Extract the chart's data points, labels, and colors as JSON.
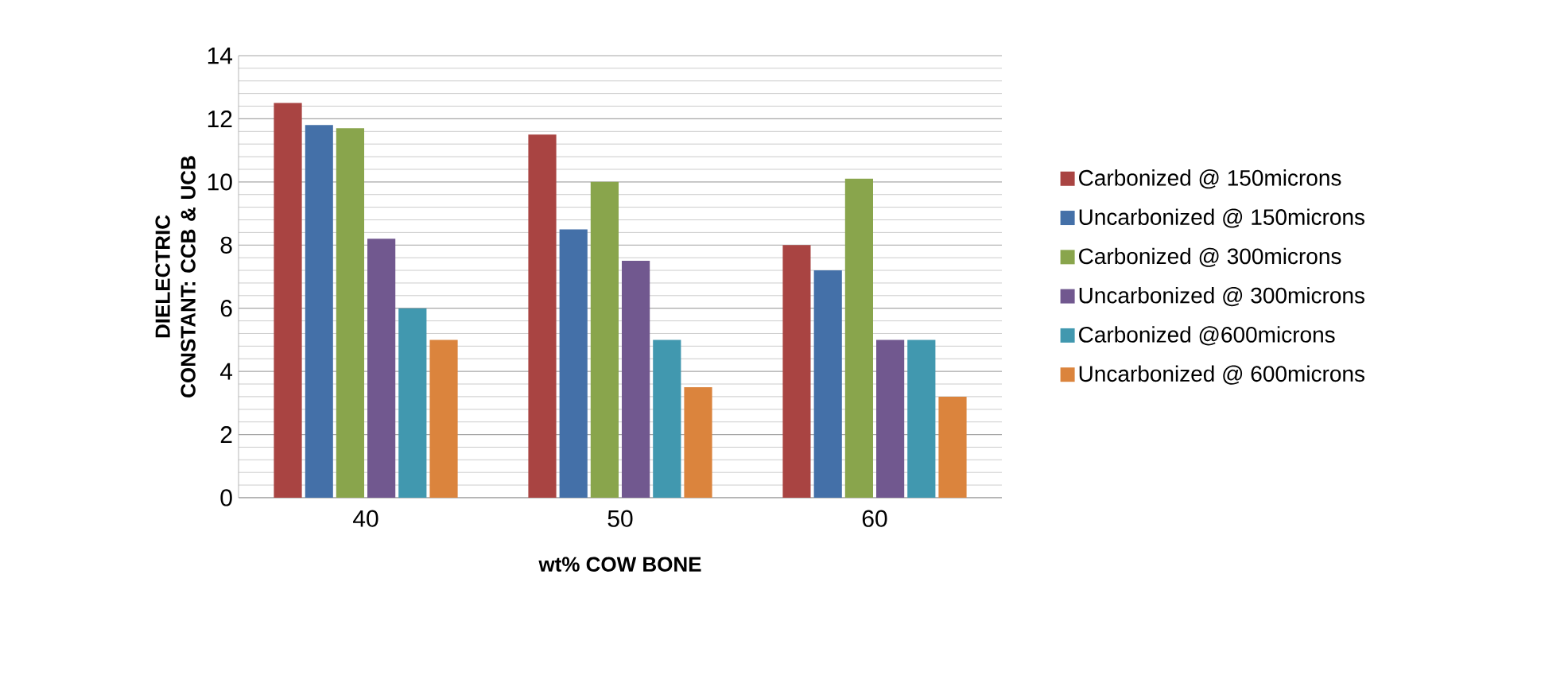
{
  "chart_data": {
    "type": "bar",
    "xlabel": "wt% COW BONE",
    "ylabel": "DIELECTRIC CONSTANT:  CCB & UCB",
    "categories": [
      "40",
      "50",
      "60"
    ],
    "series": [
      {
        "name": "Carbonized @ 150microns",
        "color": "#a94442",
        "values": [
          12.5,
          11.5,
          8.0
        ]
      },
      {
        "name": "Uncarbonized @ 150microns",
        "color": "#4470a8",
        "values": [
          11.8,
          8.5,
          7.2
        ]
      },
      {
        "name": "Carbonized @ 300microns",
        "color": "#89a54c",
        "values": [
          11.7,
          10.0,
          10.1
        ]
      },
      {
        "name": "Uncarbonized @ 300microns",
        "color": "#71588f",
        "values": [
          8.2,
          7.5,
          5.0
        ]
      },
      {
        "name": "Carbonized @600microns",
        "color": "#4198af",
        "values": [
          6.0,
          5.0,
          5.0
        ]
      },
      {
        "name": "Uncarbonized @ 600microns",
        "color": "#db843d",
        "values": [
          5.0,
          3.5,
          3.2
        ]
      }
    ],
    "ylim": [
      0,
      14
    ],
    "yticks": [
      0,
      2,
      4,
      6,
      8,
      10,
      12,
      14
    ],
    "grid": "y",
    "legend": "right"
  }
}
